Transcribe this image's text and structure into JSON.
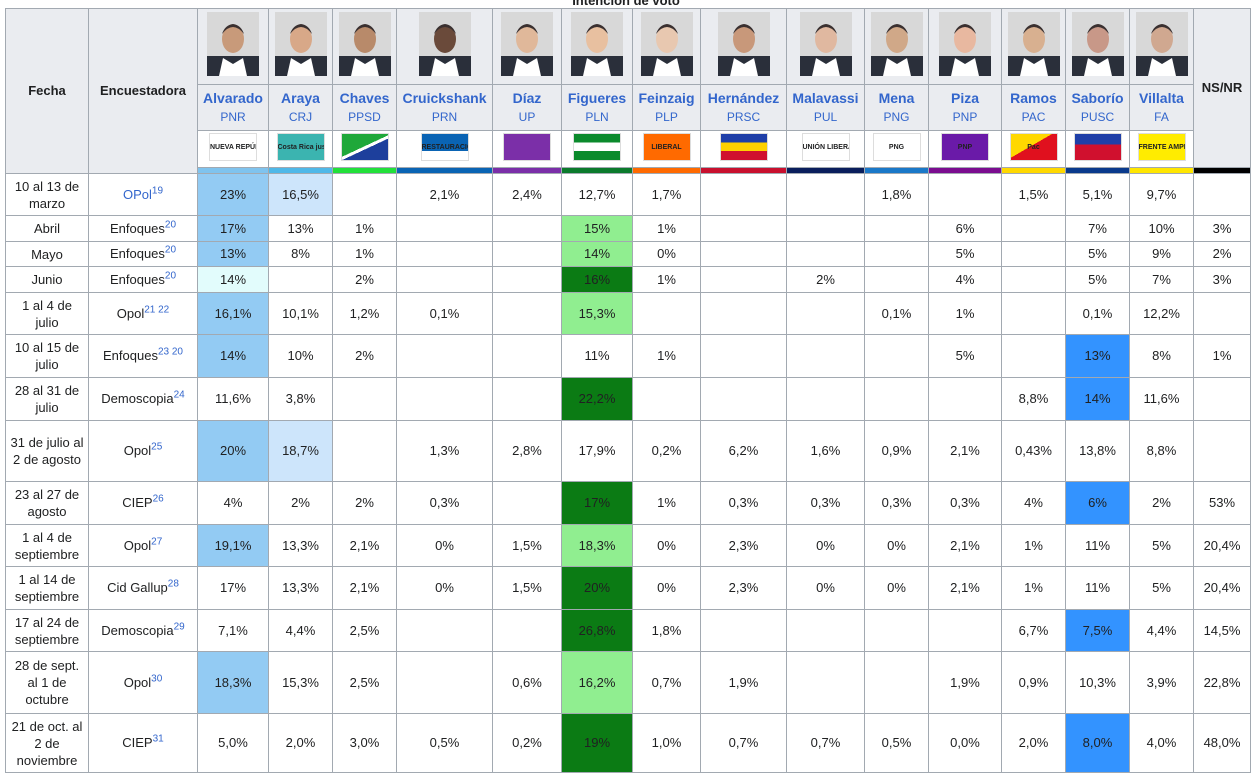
{
  "header": {
    "title": "Intención de voto",
    "col_date": "Fecha",
    "col_pollster": "Encuestadora",
    "col_nsnr": "NS/NR",
    "nsnr_color": "#000000"
  },
  "candidates": [
    {
      "name": "Alvarado",
      "party": "PNR",
      "color": "#7fc3ee",
      "logo_bg": "#ffffff",
      "logo_text": "NUEVA REPÚBLICA"
    },
    {
      "name": "Araya",
      "party": "CRJ",
      "color": "#4fb8e8",
      "logo_bg": "#3bb4b0",
      "logo_text": "Costa Rica justa"
    },
    {
      "name": "Chaves",
      "party": "PPSD",
      "color": "#22e03a",
      "logo_bg": "linear-gradient(155deg,#1fa83a 48%,#fff 48%,#fff 55%,#1d3f9c 55%)"
    },
    {
      "name": "Cruickshank",
      "party": "PRN",
      "color": "#0a64b4",
      "logo_bg": "linear-gradient(#0a64b4 65%,#fff 65%)",
      "logo_text": "RESTAURACIÓN"
    },
    {
      "name": "Díaz",
      "party": "UP",
      "color": "#7b2fa8",
      "logo_bg": "#7b2fa8"
    },
    {
      "name": "Figueres",
      "party": "PLN",
      "color": "#0b7a2c",
      "logo_bg": "linear-gradient(#0b8a2c 33%,#fff 33%,#fff 66%,#0b8a2c 66%)"
    },
    {
      "name": "Feinzaig",
      "party": "PLP",
      "color": "#ff6a00",
      "logo_bg": "#ff6a00",
      "logo_text": "LIBERAL"
    },
    {
      "name": "Hernández",
      "party": "PRSC",
      "color": "#c8102e",
      "logo_bg": "linear-gradient(#1f3fa8 33%,#ffd100 33%,#ffd100 66%,#d0102e 66%)"
    },
    {
      "name": "Malavassi",
      "party": "PUL",
      "color": "#0a1e5c",
      "logo_bg": "#ffffff",
      "logo_text": "UNIÓN LIBERAL"
    },
    {
      "name": "Mena",
      "party": "PNG",
      "color": "#1a78c8",
      "logo_bg": "#ffffff",
      "logo_text": "PNG"
    },
    {
      "name": "Piza",
      "party": "PNP",
      "color": "#7b0d8f",
      "logo_bg": "#6a1aa8",
      "logo_text": "PNP"
    },
    {
      "name": "Ramos",
      "party": "PAC",
      "color": "#ffd800",
      "logo_bg": "linear-gradient(150deg,#ffd800 45%,#e0101e 45%)",
      "logo_text": "Pac"
    },
    {
      "name": "Saborío",
      "party": "PUSC",
      "color": "#0a3a8c",
      "logo_bg": "linear-gradient(#1f3fa8 40%,#d0102e 40%)"
    },
    {
      "name": "Villalta",
      "party": "FA",
      "color": "#ffe600",
      "logo_bg": "#ffec00",
      "logo_text": "FRENTE AMPLIO"
    }
  ],
  "rows": [
    {
      "date": "10 al 13 de marzo",
      "pollster": {
        "name": "OPol",
        "link": true,
        "refs": [
          "19"
        ]
      },
      "cells": [
        {
          "text": "23%",
          "bg": "#93cbf3"
        },
        {
          "text": "16,5%",
          "bg": "#cde5fb"
        },
        null,
        {
          "text": "2,1%"
        },
        {
          "text": "2,4%"
        },
        {
          "text": "12,7%"
        },
        {
          "text": "1,7%"
        },
        null,
        null,
        {
          "text": "1,8%"
        },
        null,
        {
          "text": "1,5%"
        },
        {
          "text": "5,1%"
        },
        {
          "text": "9,7%"
        },
        null
      ]
    },
    {
      "date": "Abril",
      "pollster": {
        "name": "Enfoques",
        "refs": [
          "20"
        ]
      },
      "cells": [
        {
          "text": "17%",
          "bg": "#93cbf3"
        },
        {
          "text": "13%"
        },
        {
          "text": "1%"
        },
        null,
        null,
        {
          "text": "15%",
          "bg": "#90ee90"
        },
        {
          "text": "1%"
        },
        null,
        null,
        null,
        {
          "text": "6%"
        },
        null,
        {
          "text": "7%"
        },
        {
          "text": "10%"
        },
        {
          "text": "3%"
        }
      ]
    },
    {
      "date": "Mayo",
      "pollster": {
        "name": "Enfoques",
        "refs": [
          "20"
        ]
      },
      "cells": [
        {
          "text": "13%",
          "bg": "#93cbf3"
        },
        {
          "text": "8%"
        },
        {
          "text": "1%"
        },
        null,
        null,
        {
          "text": "14%",
          "bg": "#90ee90"
        },
        {
          "text": "0%"
        },
        null,
        null,
        null,
        {
          "text": "5%"
        },
        null,
        {
          "text": "5%"
        },
        {
          "text": "9%"
        },
        {
          "text": "2%"
        }
      ]
    },
    {
      "date": "Junio",
      "pollster": {
        "name": "Enfoques",
        "refs": [
          "20"
        ]
      },
      "cells": [
        {
          "text": "14%",
          "bg": "#e2fcfc"
        },
        null,
        {
          "text": "2%"
        },
        null,
        null,
        {
          "text": "16%",
          "bg": "#0b7b14"
        },
        {
          "text": "1%"
        },
        null,
        {
          "text": "2%"
        },
        null,
        {
          "text": "4%"
        },
        null,
        {
          "text": "5%"
        },
        {
          "text": "7%"
        },
        {
          "text": "3%"
        }
      ]
    },
    {
      "date": "1 al 4 de julio",
      "pollster": {
        "name": "Opol",
        "refs": [
          "21",
          "22"
        ]
      },
      "cells": [
        {
          "text": "16,1%",
          "bg": "#93cbf3"
        },
        {
          "text": "10,1%"
        },
        {
          "text": "1,2%"
        },
        {
          "text": "0,1%"
        },
        null,
        {
          "text": "15,3%",
          "bg": "#90ee90"
        },
        null,
        null,
        null,
        {
          "text": "0,1%"
        },
        {
          "text": "1%"
        },
        null,
        {
          "text": "0,1%"
        },
        {
          "text": "12,2%"
        },
        null
      ]
    },
    {
      "date": "10 al 15 de julio",
      "pollster": {
        "name": "Enfoques",
        "refs": [
          "23",
          "20"
        ]
      },
      "cells": [
        {
          "text": "14%",
          "bg": "#93cbf3"
        },
        {
          "text": "10%"
        },
        {
          "text": "2%"
        },
        null,
        null,
        {
          "text": "11%"
        },
        {
          "text": "1%"
        },
        null,
        null,
        null,
        {
          "text": "5%"
        },
        null,
        {
          "text": "13%",
          "bg": "#3393ff"
        },
        {
          "text": "8%"
        },
        {
          "text": "1%"
        }
      ]
    },
    {
      "date": "28 al 31 de julio",
      "pollster": {
        "name": "Demoscopia",
        "refs": [
          "24"
        ]
      },
      "cells": [
        {
          "text": "11,6%"
        },
        {
          "text": "3,8%"
        },
        null,
        null,
        null,
        {
          "text": "22,2%",
          "bg": "#0b7b14"
        },
        null,
        null,
        null,
        null,
        null,
        {
          "text": "8,8%"
        },
        {
          "text": "14%",
          "bg": "#3393ff"
        },
        {
          "text": "11,6%"
        },
        null
      ]
    },
    {
      "date": "31 de julio al 2 de agosto",
      "pollster": {
        "name": "Opol",
        "refs": [
          "25"
        ]
      },
      "cells": [
        {
          "text": "20%",
          "bg": "#93cbf3"
        },
        {
          "text": "18,7%",
          "bg": "#cde5fb"
        },
        null,
        {
          "text": "1,3%"
        },
        {
          "text": "2,8%"
        },
        {
          "text": "17,9%"
        },
        {
          "text": "0,2%"
        },
        {
          "text": "6,2%"
        },
        {
          "text": "1,6%"
        },
        {
          "text": "0,9%"
        },
        {
          "text": "2,1%"
        },
        {
          "text": "0,43%"
        },
        {
          "text": "13,8%"
        },
        {
          "text": "8,8%"
        },
        null
      ]
    },
    {
      "date": "23 al 27 de agosto",
      "pollster": {
        "name": "CIEP",
        "refs": [
          "26"
        ]
      },
      "cells": [
        {
          "text": "4%"
        },
        {
          "text": "2%"
        },
        {
          "text": "2%"
        },
        {
          "text": "0,3%"
        },
        null,
        {
          "text": "17%",
          "bg": "#0b7b14"
        },
        {
          "text": "1%"
        },
        {
          "text": "0,3%"
        },
        {
          "text": "0,3%"
        },
        {
          "text": "0,3%"
        },
        {
          "text": "0,3%"
        },
        {
          "text": "4%"
        },
        {
          "text": "6%",
          "bg": "#3393ff"
        },
        {
          "text": "2%"
        },
        {
          "text": "53%"
        }
      ]
    },
    {
      "date": "1 al 4 de septiembre",
      "pollster": {
        "name": "Opol",
        "refs": [
          "27"
        ]
      },
      "cells": [
        {
          "text": "19,1%",
          "bg": "#93cbf3"
        },
        {
          "text": "13,3%"
        },
        {
          "text": "2,1%"
        },
        {
          "text": "0%"
        },
        {
          "text": "1,5%"
        },
        {
          "text": "18,3%",
          "bg": "#90ee90"
        },
        {
          "text": "0%"
        },
        {
          "text": "2,3%"
        },
        {
          "text": "0%"
        },
        {
          "text": "0%"
        },
        {
          "text": "2,1%"
        },
        {
          "text": "1%"
        },
        {
          "text": "11%"
        },
        {
          "text": "5%"
        },
        {
          "text": "20,4%"
        }
      ]
    },
    {
      "date": "1 al 14 de septiembre",
      "pollster": {
        "name": "Cid Gallup",
        "refs": [
          "28"
        ]
      },
      "cells": [
        {
          "text": "17%"
        },
        {
          "text": "13,3%"
        },
        {
          "text": "2,1%"
        },
        {
          "text": "0%"
        },
        {
          "text": "1,5%"
        },
        {
          "text": "20%",
          "bg": "#0b7b14"
        },
        {
          "text": "0%"
        },
        {
          "text": "2,3%"
        },
        {
          "text": "0%"
        },
        {
          "text": "0%"
        },
        {
          "text": "2,1%"
        },
        {
          "text": "1%"
        },
        {
          "text": "11%"
        },
        {
          "text": "5%"
        },
        {
          "text": "20,4%"
        }
      ]
    },
    {
      "date": "17 al 24 de septiembre",
      "pollster": {
        "name": "Demoscopia",
        "refs": [
          "29"
        ]
      },
      "cells": [
        {
          "text": "7,1%"
        },
        {
          "text": "4,4%"
        },
        {
          "text": "2,5%"
        },
        null,
        null,
        {
          "text": "26,8%",
          "bg": "#0b7b14"
        },
        {
          "text": "1,8%"
        },
        null,
        null,
        null,
        null,
        {
          "text": "6,7%"
        },
        {
          "text": "7,5%",
          "bg": "#3393ff"
        },
        {
          "text": "4,4%"
        },
        {
          "text": "14,5%"
        }
      ]
    },
    {
      "date": "28 de sept. al 1 de octubre",
      "pollster": {
        "name": "Opol",
        "refs": [
          "30"
        ]
      },
      "cells": [
        {
          "text": "18,3%",
          "bg": "#93cbf3"
        },
        {
          "text": "15,3%"
        },
        {
          "text": "2,5%"
        },
        null,
        {
          "text": "0,6%"
        },
        {
          "text": "16,2%",
          "bg": "#90ee90"
        },
        {
          "text": "0,7%"
        },
        {
          "text": "1,9%"
        },
        null,
        null,
        {
          "text": "1,9%"
        },
        {
          "text": "0,9%"
        },
        {
          "text": "10,3%"
        },
        {
          "text": "3,9%"
        },
        {
          "text": "22,8%"
        }
      ]
    },
    {
      "date": "21 de oct. al 2 de noviembre",
      "pollster": {
        "name": "CIEP",
        "refs": [
          "31"
        ]
      },
      "cells": [
        {
          "text": "5,0%"
        },
        {
          "text": "2,0%"
        },
        {
          "text": "3,0%"
        },
        {
          "text": "0,5%"
        },
        {
          "text": "0,2%"
        },
        {
          "text": "19%",
          "bg": "#0b7b14"
        },
        {
          "text": "1,0%"
        },
        {
          "text": "0,7%"
        },
        {
          "text": "0,7%"
        },
        {
          "text": "0,5%"
        },
        {
          "text": "0,0%"
        },
        {
          "text": "2,0%"
        },
        {
          "text": "8,0%",
          "bg": "#3393ff"
        },
        {
          "text": "4,0%"
        },
        {
          "text": "48,0%"
        }
      ]
    }
  ]
}
